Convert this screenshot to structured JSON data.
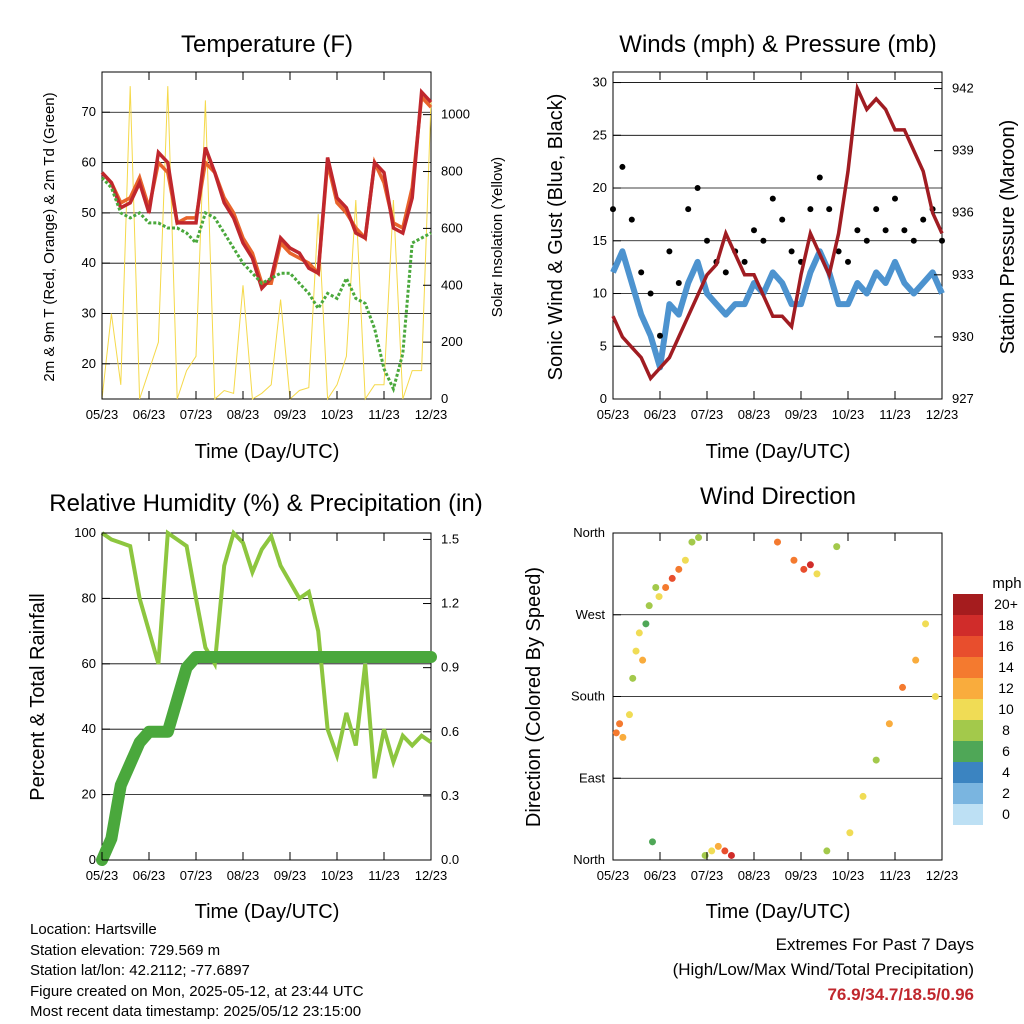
{
  "x_ticks": [
    "05/23",
    "06/23",
    "07/23",
    "08/23",
    "09/23",
    "10/23",
    "11/23",
    "12/23"
  ],
  "chart_data": [
    {
      "type": "line",
      "title": "Temperature (F)",
      "xlabel": "Time (Day/UTC)",
      "ylabel": "2m & 9m T (Red, Orange) & 2m Td (Green)",
      "ylabel_right": "Solar Insolation (Yellow)",
      "ylim": [
        13,
        78
      ],
      "yticks": [
        "20",
        "30",
        "40",
        "50",
        "60",
        "70"
      ],
      "y2lim": [
        0,
        1150
      ],
      "y2ticks": [
        "0",
        "200",
        "400",
        "600",
        "800",
        "1000"
      ],
      "series": [
        {
          "color": "#e8642c",
          "values": [
            58,
            56,
            52,
            53,
            57,
            51,
            60,
            58,
            48,
            49,
            49,
            60,
            58,
            53,
            50,
            45,
            42,
            36,
            36,
            44,
            42,
            41,
            40,
            38,
            60,
            52,
            50,
            47,
            45,
            60,
            56,
            48,
            47,
            55,
            73,
            71
          ]
        },
        {
          "color": "#c0272d",
          "values": [
            58,
            56,
            51,
            52,
            56,
            50,
            62,
            60,
            48,
            48,
            48,
            63,
            58,
            52,
            49,
            44,
            41,
            35,
            37,
            45,
            43,
            42,
            39,
            38,
            61,
            53,
            51,
            46,
            45,
            60,
            58,
            47,
            46,
            53,
            74,
            72
          ]
        },
        {
          "color": "#4aa83c",
          "values": [
            57,
            55,
            50,
            49,
            50,
            48,
            48,
            47,
            47,
            46,
            44,
            50,
            49,
            46,
            43,
            40,
            38,
            36,
            37,
            38,
            38,
            36,
            34,
            31,
            34,
            33,
            37,
            33,
            32,
            27,
            19,
            15,
            22,
            44,
            45,
            46
          ]
        },
        {
          "color": "#f5d94a",
          "values": [
            0,
            300,
            50,
            1100,
            0,
            100,
            200,
            1100,
            0,
            100,
            150,
            1050,
            0,
            30,
            20,
            400,
            0,
            20,
            50,
            350,
            0,
            30,
            40,
            650,
            0,
            50,
            150,
            700,
            0,
            50,
            50,
            700,
            0,
            100,
            100,
            1050
          ]
        }
      ]
    },
    {
      "type": "scatter",
      "title": "Winds (mph) & Pressure (mb)",
      "xlabel": "Time (Day/UTC)",
      "ylabel": "Sonic Wind & Gust (Blue, Black)",
      "ylabel_right": "Station Pressure (Maroon)",
      "ylim": [
        0,
        31
      ],
      "yticks": [
        "0",
        "5",
        "10",
        "15",
        "20",
        "25",
        "30"
      ],
      "y2ticks": [
        "927",
        "930",
        "933",
        "936",
        "939",
        "942"
      ],
      "series": [
        {
          "color": "#000000",
          "values": [
            18,
            22,
            17,
            12,
            10,
            6,
            14,
            11,
            18,
            20,
            15,
            13,
            12,
            14,
            13,
            16,
            15,
            19,
            17,
            14,
            13,
            18,
            21,
            18,
            14,
            13,
            16,
            15,
            18,
            16,
            19,
            16,
            15,
            17,
            18,
            15
          ]
        },
        {
          "color": "#4d93cf",
          "values": [
            12,
            14,
            11,
            8,
            6,
            3,
            9,
            8,
            11,
            13,
            10,
            9,
            8,
            9,
            9,
            11,
            10,
            12,
            11,
            9,
            9,
            12,
            14,
            12,
            9,
            9,
            11,
            10,
            12,
            11,
            13,
            11,
            10,
            11,
            12,
            10
          ]
        },
        {
          "color": "#a01c22",
          "values": [
            931,
            930,
            929.5,
            929,
            928,
            928.5,
            929,
            930,
            931,
            932,
            933,
            933.5,
            935,
            934,
            933,
            933,
            932,
            931,
            931,
            930.5,
            933,
            935,
            934,
            933,
            935,
            938,
            942,
            941,
            941.5,
            941,
            940,
            940,
            939,
            938,
            936,
            935
          ]
        }
      ]
    },
    {
      "type": "line",
      "title": "Relative Humidity (%) & Precipitation (in)",
      "xlabel": "Time (Day/UTC)",
      "ylabel": "Percent & Total Rainfall",
      "ylim": [
        0,
        100
      ],
      "yticks": [
        "0",
        "20",
        "40",
        "60",
        "80",
        "100"
      ],
      "y2ticks": [
        "0.0",
        "0.3",
        "0.6",
        "0.9",
        "1.2",
        "1.5"
      ],
      "series": [
        {
          "color": "#8dc63f",
          "values": [
            100,
            98,
            97,
            96,
            80,
            70,
            60,
            100,
            98,
            96,
            80,
            65,
            60,
            90,
            100,
            97,
            88,
            95,
            99,
            90,
            85,
            80,
            82,
            70,
            40,
            32,
            45,
            35,
            60,
            25,
            40,
            30,
            38,
            35,
            38,
            36
          ]
        },
        {
          "color": "#4aa83c",
          "values": [
            0,
            0.1,
            0.35,
            0.45,
            0.55,
            0.6,
            0.6,
            0.6,
            0.75,
            0.9,
            0.95,
            0.95,
            0.95,
            0.95,
            0.95,
            0.95,
            0.95,
            0.95,
            0.95,
            0.95,
            0.95,
            0.95,
            0.95,
            0.95,
            0.95,
            0.95,
            0.95,
            0.95,
            0.95,
            0.95,
            0.95,
            0.95,
            0.95,
            0.95,
            0.95,
            0.95
          ]
        }
      ]
    },
    {
      "type": "scatter",
      "title": "Wind Direction",
      "xlabel": "Time (Day/UTC)",
      "ylabel": "Direction (Colored By Speed)",
      "yticks": [
        "North",
        "East",
        "South",
        "West",
        "North"
      ],
      "ylim": [
        0,
        360
      ],
      "legend": {
        "title": "mph",
        "labels": [
          "20+",
          "18",
          "16",
          "14",
          "12",
          "10",
          "8",
          "6",
          "4",
          "2",
          "0"
        ],
        "colors": [
          "#a51c1e",
          "#d02c2a",
          "#e84e2d",
          "#f47a2f",
          "#f9ac3d",
          "#f0dc55",
          "#a3c94b",
          "#4fa757",
          "#3b84c1",
          "#7ab5e0",
          "#bde0f4"
        ]
      },
      "points": [
        {
          "x": 0.01,
          "dir": 140,
          "spd": 14
        },
        {
          "x": 0.02,
          "dir": 150,
          "spd": 13
        },
        {
          "x": 0.03,
          "dir": 135,
          "spd": 12
        },
        {
          "x": 0.05,
          "dir": 160,
          "spd": 10
        },
        {
          "x": 0.06,
          "dir": 200,
          "spd": 8
        },
        {
          "x": 0.07,
          "dir": 230,
          "spd": 9
        },
        {
          "x": 0.08,
          "dir": 250,
          "spd": 10
        },
        {
          "x": 0.09,
          "dir": 220,
          "spd": 12
        },
        {
          "x": 0.1,
          "dir": 260,
          "spd": 6
        },
        {
          "x": 0.11,
          "dir": 280,
          "spd": 7
        },
        {
          "x": 0.12,
          "dir": 20,
          "spd": 5
        },
        {
          "x": 0.13,
          "dir": 300,
          "spd": 8
        },
        {
          "x": 0.14,
          "dir": 290,
          "spd": 10
        },
        {
          "x": 0.16,
          "dir": 300,
          "spd": 14
        },
        {
          "x": 0.18,
          "dir": 310,
          "spd": 15
        },
        {
          "x": 0.2,
          "dir": 320,
          "spd": 13
        },
        {
          "x": 0.22,
          "dir": 330,
          "spd": 10
        },
        {
          "x": 0.24,
          "dir": 350,
          "spd": 8
        },
        {
          "x": 0.26,
          "dir": 355,
          "spd": 7
        },
        {
          "x": 0.28,
          "dir": 5,
          "spd": 8
        },
        {
          "x": 0.3,
          "dir": 10,
          "spd": 9
        },
        {
          "x": 0.32,
          "dir": 15,
          "spd": 12
        },
        {
          "x": 0.34,
          "dir": 10,
          "spd": 16
        },
        {
          "x": 0.36,
          "dir": 5,
          "spd": 18
        },
        {
          "x": 0.5,
          "dir": 350,
          "spd": 14
        },
        {
          "x": 0.55,
          "dir": 330,
          "spd": 13
        },
        {
          "x": 0.58,
          "dir": 320,
          "spd": 15
        },
        {
          "x": 0.6,
          "dir": 325,
          "spd": 17
        },
        {
          "x": 0.62,
          "dir": 315,
          "spd": 9
        },
        {
          "x": 0.65,
          "dir": 10,
          "spd": 8
        },
        {
          "x": 0.68,
          "dir": 345,
          "spd": 7
        },
        {
          "x": 0.72,
          "dir": 30,
          "spd": 9
        },
        {
          "x": 0.76,
          "dir": 70,
          "spd": 10
        },
        {
          "x": 0.8,
          "dir": 110,
          "spd": 8
        },
        {
          "x": 0.84,
          "dir": 150,
          "spd": 11
        },
        {
          "x": 0.88,
          "dir": 190,
          "spd": 13
        },
        {
          "x": 0.92,
          "dir": 220,
          "spd": 12
        },
        {
          "x": 0.95,
          "dir": 260,
          "spd": 10
        },
        {
          "x": 0.98,
          "dir": 180,
          "spd": 9
        }
      ]
    }
  ],
  "info": {
    "location": "Location: Hartsville",
    "elevation": "Station elevation: 729.569 m",
    "latlon": "Station lat/lon: 42.2112; -77.6897",
    "created": "Figure created on Mon, 2025-05-12, at 23:44 UTC",
    "latest": "Most recent data timestamp: 2025/05/12 23:15:00"
  },
  "extremes": {
    "title": "Extremes For Past 7 Days",
    "subtitle": "(High/Low/Max Wind/Total Precipitation)",
    "values": "76.9/34.7/18.5/0.96"
  }
}
